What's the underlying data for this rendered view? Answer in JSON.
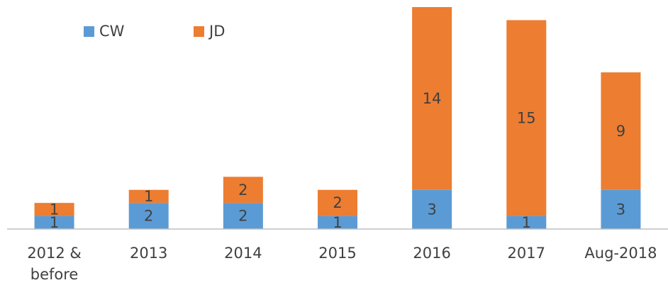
{
  "chart_data": {
    "type": "bar",
    "stacked": true,
    "categories": [
      "2012 & before",
      "2013",
      "2014",
      "2015",
      "2016",
      "2017",
      "Aug-2018"
    ],
    "series": [
      {
        "name": "CW",
        "color": "#5b9bd5",
        "values": [
          1,
          2,
          2,
          1,
          3,
          1,
          3
        ]
      },
      {
        "name": "JD",
        "color": "#ed7d31",
        "values": [
          1,
          1,
          2,
          2,
          14,
          15,
          9
        ]
      }
    ],
    "legend": "top-left"
  }
}
